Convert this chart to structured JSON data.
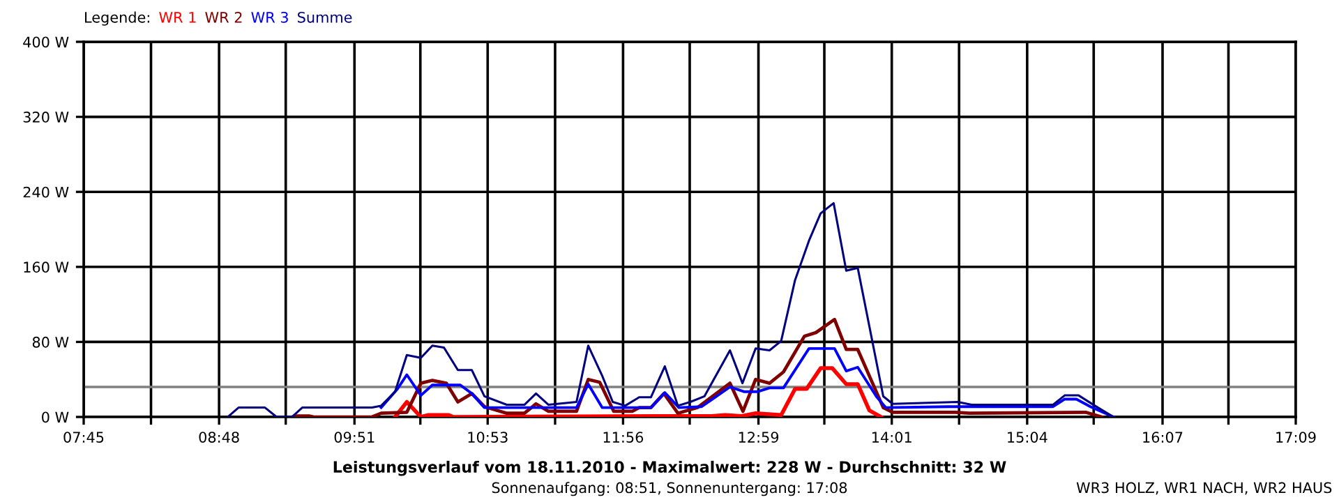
{
  "chart_data": {
    "type": "line",
    "title": "Leistungsverlauf vom 18.11.2010 - Maximalwert: 228 W - Durchschnitt: 32 W",
    "subtitle": "Sonnenaufgang: 08:51, Sonnenuntergang: 17:08",
    "annotations": [
      "WR3 HOLZ, WR1 NACH, WR2 HAUS"
    ],
    "legend_title": "Legende:",
    "legend": "top left",
    "grid": true,
    "marker": "none",
    "line_style": "solid",
    "xlim": [
      7.75,
      17.15
    ],
    "xticks": [
      {
        "value": 7.75,
        "label": "07:45"
      },
      {
        "value": 8.272,
        "label": null
      },
      {
        "value": 8.8,
        "label": "08:48"
      },
      {
        "value": 9.317,
        "label": null
      },
      {
        "value": 9.85,
        "label": "09:51"
      },
      {
        "value": 10.361,
        "label": null
      },
      {
        "value": 10.883,
        "label": "10:53"
      },
      {
        "value": 11.406,
        "label": null
      },
      {
        "value": 11.933,
        "label": "11:56"
      },
      {
        "value": 12.45,
        "label": null
      },
      {
        "value": 12.983,
        "label": "12:59"
      },
      {
        "value": 13.494,
        "label": null
      },
      {
        "value": 14.017,
        "label": "14:01"
      },
      {
        "value": 14.539,
        "label": null
      },
      {
        "value": 15.067,
        "label": "15:04"
      },
      {
        "value": 15.583,
        "label": null
      },
      {
        "value": 16.117,
        "label": "16:07"
      },
      {
        "value": 16.628,
        "label": null
      },
      {
        "value": 17.15,
        "label": "17:09"
      }
    ],
    "ylim": [
      0,
      400
    ],
    "yticks": [
      {
        "value": 0,
        "label": "0 W"
      },
      {
        "value": 80,
        "label": "80 W"
      },
      {
        "value": 160,
        "label": "160 W"
      },
      {
        "value": 240,
        "label": "240 W"
      },
      {
        "value": 320,
        "label": "320 W"
      },
      {
        "value": 400,
        "label": "400 W"
      }
    ],
    "ref_lines": [
      {
        "axis": "y",
        "value": 32,
        "color": "#808080",
        "line_style": "solid"
      }
    ],
    "series": [
      {
        "name": "WR 1",
        "color": "#ff0000",
        "x": [
          10.165,
          10.256,
          10.365,
          10.419,
          10.581,
          10.617,
          12.203,
          12.312,
          12.618,
          12.726,
          12.852,
          12.961,
          13.159,
          13.267,
          13.357,
          13.465,
          13.556,
          13.664,
          13.753,
          13.843,
          13.934
        ],
        "values": [
          0,
          16,
          0,
          2,
          2,
          0,
          1,
          1,
          1,
          2,
          1,
          4,
          2,
          30,
          30,
          52,
          52,
          35,
          35,
          7,
          0
        ]
      },
      {
        "name": "WR 2",
        "color": "#800000",
        "x": [
          9.365,
          9.405,
          9.502,
          9.535,
          9.986,
          10.057,
          10.256,
          10.365,
          10.454,
          10.562,
          10.652,
          10.76,
          10.858,
          11.031,
          11.168,
          11.258,
          11.355,
          11.572,
          11.663,
          11.752,
          11.861,
          12.004,
          12.058,
          12.149,
          12.25,
          12.358,
          12.51,
          12.762,
          12.863,
          12.961,
          13.069,
          13.177,
          13.339,
          13.429,
          13.573,
          13.664,
          13.753,
          13.951,
          14.024,
          14.511,
          14.619,
          15.52,
          15.646
        ],
        "values": [
          0,
          1,
          1,
          0,
          0,
          4,
          5,
          36,
          39,
          36,
          16,
          25,
          11,
          4,
          4,
          14,
          6,
          6,
          40,
          37,
          6,
          6,
          10,
          10,
          25,
          4,
          10,
          36,
          6,
          40,
          36,
          48,
          86,
          90,
          104,
          72,
          72,
          10,
          5,
          5,
          4,
          5,
          0
        ]
      },
      {
        "name": "WR 3",
        "color": "#0000ff",
        "x": [
          10.057,
          10.184,
          10.256,
          10.365,
          10.454,
          10.671,
          10.76,
          10.858,
          11.572,
          11.663,
          11.771,
          12.149,
          12.257,
          12.366,
          12.542,
          12.762,
          12.87,
          12.978,
          13.069,
          13.177,
          13.375,
          13.573,
          13.664,
          13.753,
          13.897,
          13.97,
          14.457,
          15.268,
          15.358,
          15.449,
          15.557,
          15.736
        ],
        "values": [
          10,
          30,
          45,
          23,
          34,
          34,
          25,
          10,
          10,
          35,
          10,
          10,
          26,
          10,
          11,
          32,
          27,
          27,
          31,
          31,
          73,
          73,
          49,
          53,
          22,
          10,
          11,
          11,
          19,
          19,
          11,
          0
        ]
      },
      {
        "name": "Summe",
        "color": "#000080",
        "x": [
          8.867,
          8.951,
          9.156,
          9.246,
          9.365,
          9.445,
          9.986,
          10.057,
          10.165,
          10.256,
          10.365,
          10.454,
          10.544,
          10.652,
          10.76,
          10.858,
          11.031,
          11.168,
          11.258,
          11.355,
          11.572,
          11.663,
          11.771,
          11.853,
          11.95,
          12.058,
          12.149,
          12.257,
          12.358,
          12.455,
          12.564,
          12.762,
          12.859,
          12.961,
          13.069,
          13.159,
          13.267,
          13.375,
          13.465,
          13.519,
          13.566,
          13.664,
          13.753,
          13.951,
          14.024,
          14.529,
          14.637,
          15.268,
          15.358,
          15.466,
          15.592,
          15.736
        ],
        "values": [
          0,
          10,
          10,
          0,
          0,
          10,
          10,
          12,
          27,
          66,
          63,
          76,
          74,
          50,
          50,
          22,
          13,
          13,
          25,
          13,
          16,
          76,
          44,
          16,
          12,
          21,
          21,
          54,
          12,
          16,
          22,
          71,
          36,
          73,
          71,
          81,
          146,
          188,
          217,
          223,
          228,
          156,
          159,
          22,
          14,
          16,
          13,
          13,
          23,
          23,
          12,
          0
        ]
      }
    ]
  }
}
